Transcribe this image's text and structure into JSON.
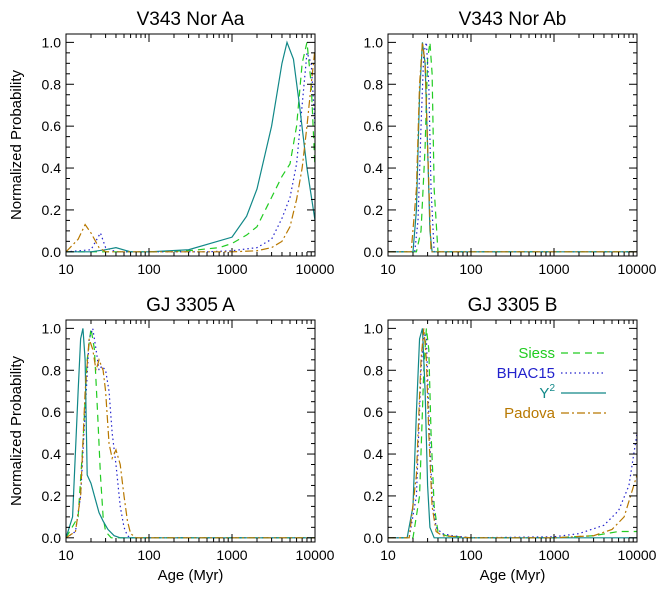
{
  "colors": {
    "siess": "#22cc22",
    "bhac15": "#2222cc",
    "y2": "#118888",
    "padova": "#b87800"
  },
  "legend": [
    {
      "key": "siess",
      "label": "Siess",
      "dash": "7,5"
    },
    {
      "key": "bhac15",
      "label": "BHAC15",
      "dash": "1.5,3"
    },
    {
      "key": "y2",
      "label": "Y",
      "sup": "2",
      "dash": ""
    },
    {
      "key": "padova",
      "label": "Padova",
      "dash": "8,3,2,3"
    }
  ],
  "chart_data": [
    {
      "type": "line",
      "title": "V343 Nor Aa",
      "xlabel": "",
      "ylabel": "Normalized Probability",
      "xscale": "log",
      "xlim": [
        10,
        10000
      ],
      "ylim": [
        -0.02,
        1.04
      ],
      "xticks": [
        "10",
        "100",
        "1000",
        "10000"
      ],
      "yticks": [
        "0.0",
        "0.2",
        "0.4",
        "0.6",
        "0.8",
        "1.0"
      ],
      "series": [
        {
          "model": "siess",
          "x": [
            10,
            20,
            40,
            100,
            300,
            700,
            1000,
            1500,
            2000,
            3000,
            4000,
            5000,
            6000,
            7000,
            8000,
            9000,
            10000
          ],
          "y": [
            0,
            0,
            0,
            0,
            0.005,
            0.02,
            0.04,
            0.08,
            0.12,
            0.26,
            0.36,
            0.42,
            0.6,
            0.9,
            1.0,
            0.8,
            0.4
          ]
        },
        {
          "model": "bhac15",
          "x": [
            10,
            20,
            26,
            30,
            40,
            100,
            500,
            1000,
            2000,
            3000,
            4000,
            5000,
            6000,
            7000,
            8000,
            9000,
            10000
          ],
          "y": [
            0,
            0.01,
            0.09,
            0.02,
            0,
            0,
            0,
            0.005,
            0.02,
            0.06,
            0.16,
            0.26,
            0.42,
            0.7,
            0.95,
            0.9,
            0.6
          ]
        },
        {
          "model": "y2",
          "x": [
            10,
            20,
            30,
            40,
            60,
            100,
            300,
            1000,
            1500,
            2000,
            3000,
            4000,
            4600,
            5500,
            6500,
            8000,
            10000
          ],
          "y": [
            0,
            0,
            0.01,
            0.02,
            0,
            0,
            0.01,
            0.07,
            0.17,
            0.3,
            0.6,
            0.9,
            1.0,
            0.92,
            0.7,
            0.4,
            0.15
          ]
        },
        {
          "model": "padova",
          "x": [
            10,
            14,
            17,
            20,
            25,
            30,
            40,
            100,
            1000,
            2000,
            3000,
            4000,
            5000,
            6000,
            7000,
            8000,
            9000,
            10000
          ],
          "y": [
            0,
            0.06,
            0.13,
            0.09,
            0.02,
            0,
            0,
            0,
            0,
            0.005,
            0.02,
            0.05,
            0.12,
            0.25,
            0.4,
            0.6,
            0.8,
            0.97
          ]
        }
      ]
    },
    {
      "type": "line",
      "title": "V343 Nor Ab",
      "xlabel": "",
      "ylabel": "",
      "xscale": "log",
      "xlim": [
        10,
        10000
      ],
      "ylim": [
        -0.02,
        1.04
      ],
      "xticks": [
        "10",
        "100",
        "1000",
        "10000"
      ],
      "yticks": [
        "0.0",
        "0.2",
        "0.4",
        "0.6",
        "0.8",
        "1.0"
      ],
      "series": [
        {
          "model": "siess",
          "x": [
            10,
            22,
            25,
            28,
            30,
            32,
            34,
            36,
            40,
            100,
            10000
          ],
          "y": [
            0,
            0,
            0.1,
            0.5,
            0.92,
            1.0,
            0.85,
            0.3,
            0,
            0,
            0
          ]
        },
        {
          "model": "bhac15",
          "x": [
            10,
            21,
            23,
            25,
            27,
            29,
            31,
            33,
            36,
            100,
            10000
          ],
          "y": [
            0,
            0,
            0.15,
            0.6,
            0.95,
            1.0,
            0.8,
            0.3,
            0,
            0,
            0
          ]
        },
        {
          "model": "y2",
          "x": [
            10,
            20,
            22,
            24,
            26,
            28,
            30,
            32,
            34,
            100,
            10000
          ],
          "y": [
            0,
            0,
            0.2,
            0.75,
            1.0,
            0.9,
            0.5,
            0.1,
            0,
            0,
            0
          ]
        },
        {
          "model": "padova",
          "x": [
            10,
            19,
            22,
            24,
            26,
            28,
            30,
            33,
            100,
            10000
          ],
          "y": [
            0,
            0,
            0.3,
            0.8,
            1.0,
            0.9,
            0.5,
            0,
            0,
            0
          ]
        }
      ]
    },
    {
      "type": "line",
      "title": "GJ 3305 A",
      "xlabel": "Age (Myr)",
      "ylabel": "Normalized Probability",
      "xscale": "log",
      "xlim": [
        10,
        10000
      ],
      "ylim": [
        -0.02,
        1.04
      ],
      "xticks": [
        "10",
        "100",
        "1000",
        "10000"
      ],
      "yticks": [
        "0.0",
        "0.2",
        "0.4",
        "0.6",
        "0.8",
        "1.0"
      ],
      "series": [
        {
          "model": "siess",
          "x": [
            10,
            14,
            16,
            18,
            20,
            22,
            24,
            26,
            28,
            30,
            35,
            40,
            100,
            10000
          ],
          "y": [
            0,
            0.1,
            0.45,
            0.85,
            1.0,
            0.9,
            0.6,
            0.3,
            0.1,
            0.03,
            0,
            0,
            0,
            0
          ]
        },
        {
          "model": "bhac15",
          "x": [
            10,
            13,
            15,
            17,
            19,
            21,
            23,
            25,
            27,
            30,
            33,
            36,
            40,
            45,
            50,
            55,
            60,
            100,
            10000
          ],
          "y": [
            0,
            0.03,
            0.2,
            0.6,
            0.95,
            1.0,
            0.9,
            0.8,
            0.82,
            0.8,
            0.7,
            0.5,
            0.35,
            0.15,
            0.05,
            0.01,
            0,
            0,
            0
          ]
        },
        {
          "model": "y2",
          "x": [
            10,
            12,
            14,
            15,
            16,
            17,
            18,
            20,
            22,
            25,
            28,
            32,
            38,
            45,
            60,
            100,
            10000
          ],
          "y": [
            0,
            0.1,
            0.7,
            0.95,
            1.0,
            0.85,
            0.3,
            0.26,
            0.2,
            0.12,
            0.08,
            0.04,
            0.01,
            0,
            0,
            0,
            0
          ]
        },
        {
          "model": "padova",
          "x": [
            10,
            13,
            15,
            17,
            19,
            21,
            23,
            25,
            28,
            30,
            33,
            36,
            40,
            45,
            50,
            55,
            60,
            70,
            100,
            10000
          ],
          "y": [
            0,
            0.03,
            0.2,
            0.7,
            0.95,
            0.9,
            0.8,
            0.85,
            0.8,
            0.7,
            0.45,
            0.38,
            0.42,
            0.35,
            0.2,
            0.08,
            0.02,
            0,
            0,
            0
          ]
        }
      ]
    },
    {
      "type": "line",
      "title": "GJ 3305 B",
      "xlabel": "Age (Myr)",
      "ylabel": "",
      "xscale": "log",
      "xlim": [
        10,
        10000
      ],
      "ylim": [
        -0.02,
        1.04
      ],
      "xticks": [
        "10",
        "100",
        "1000",
        "10000"
      ],
      "yticks": [
        "0.0",
        "0.2",
        "0.4",
        "0.6",
        "0.8",
        "1.0"
      ],
      "series": [
        {
          "model": "siess",
          "x": [
            10,
            20,
            24,
            27,
            29,
            31,
            33,
            36,
            40,
            50,
            100,
            1000,
            3000,
            6000,
            10000
          ],
          "y": [
            0,
            0,
            0.2,
            0.8,
            1.0,
            0.9,
            0.5,
            0.15,
            0.03,
            0.01,
            0,
            0,
            0.01,
            0.03,
            0.03
          ]
        },
        {
          "model": "bhac15",
          "x": [
            10,
            18,
            22,
            25,
            27,
            29,
            31,
            34,
            38,
            45,
            60,
            100,
            1000,
            2000,
            4000,
            6000,
            8000,
            10000
          ],
          "y": [
            0,
            0,
            0.2,
            0.8,
            0.98,
            0.95,
            0.6,
            0.2,
            0.05,
            0.02,
            0.01,
            0,
            0.005,
            0.02,
            0.06,
            0.13,
            0.25,
            0.5
          ]
        },
        {
          "model": "y2",
          "x": [
            10,
            17,
            20,
            22,
            24,
            26,
            28,
            30,
            32,
            36,
            100,
            10000
          ],
          "y": [
            0,
            0,
            0.15,
            0.6,
            0.95,
            1.0,
            0.7,
            0.25,
            0.05,
            0,
            0,
            0
          ]
        },
        {
          "model": "padova",
          "x": [
            10,
            18,
            22,
            25,
            27,
            29,
            31,
            34,
            38,
            45,
            100,
            1000,
            3000,
            5000,
            7000,
            10000
          ],
          "y": [
            0,
            0,
            0.3,
            0.85,
            1.0,
            0.85,
            0.5,
            0.15,
            0.03,
            0.01,
            0,
            0,
            0.01,
            0.04,
            0.1,
            0.3
          ]
        }
      ]
    }
  ]
}
